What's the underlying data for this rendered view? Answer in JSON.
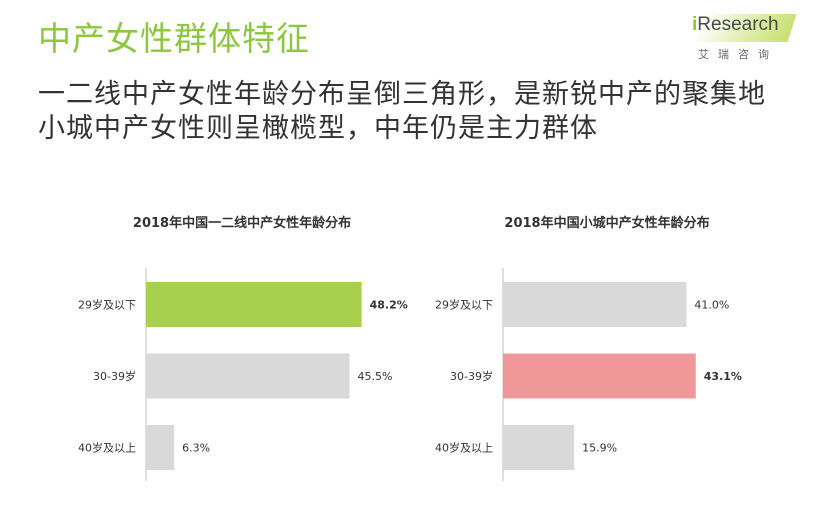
{
  "header": {
    "title": "中产女性群体特征",
    "headline_line1": "一二线中产女性年龄分布呈倒三角形，是新锐中产的聚集地",
    "headline_line2": "小城中产女性则呈橄榄型，中年仍是主力群体"
  },
  "logo": {
    "brand_prefix": "i",
    "brand_rest": "Research",
    "sub": "艾瑞咨询"
  },
  "colors": {
    "green_highlight": "#a9cf4e",
    "pink_highlight": "#f0979a",
    "gray_bar": "#d9d9d9",
    "axis": "#bfbfbf"
  },
  "chart_data": [
    {
      "type": "bar",
      "orientation": "horizontal",
      "title": "2018年中国一二线中产女性年龄分布",
      "categories": [
        "29岁及以下",
        "30-39岁",
        "40岁及以上"
      ],
      "values": [
        48.2,
        45.5,
        6.3
      ],
      "labels": [
        "48.2%",
        "45.5%",
        "6.3%"
      ],
      "unit": "%",
      "highlight_index": 0,
      "xlim": [
        0,
        55
      ]
    },
    {
      "type": "bar",
      "orientation": "horizontal",
      "title": "2018年中国小城中产女性年龄分布",
      "categories": [
        "29岁及以下",
        "30-39岁",
        "40岁及以上"
      ],
      "values": [
        41.0,
        43.1,
        15.9
      ],
      "labels": [
        "41.0%",
        "43.1%",
        "15.9%"
      ],
      "unit": "%",
      "highlight_index": 1,
      "xlim": [
        0,
        55
      ]
    }
  ]
}
